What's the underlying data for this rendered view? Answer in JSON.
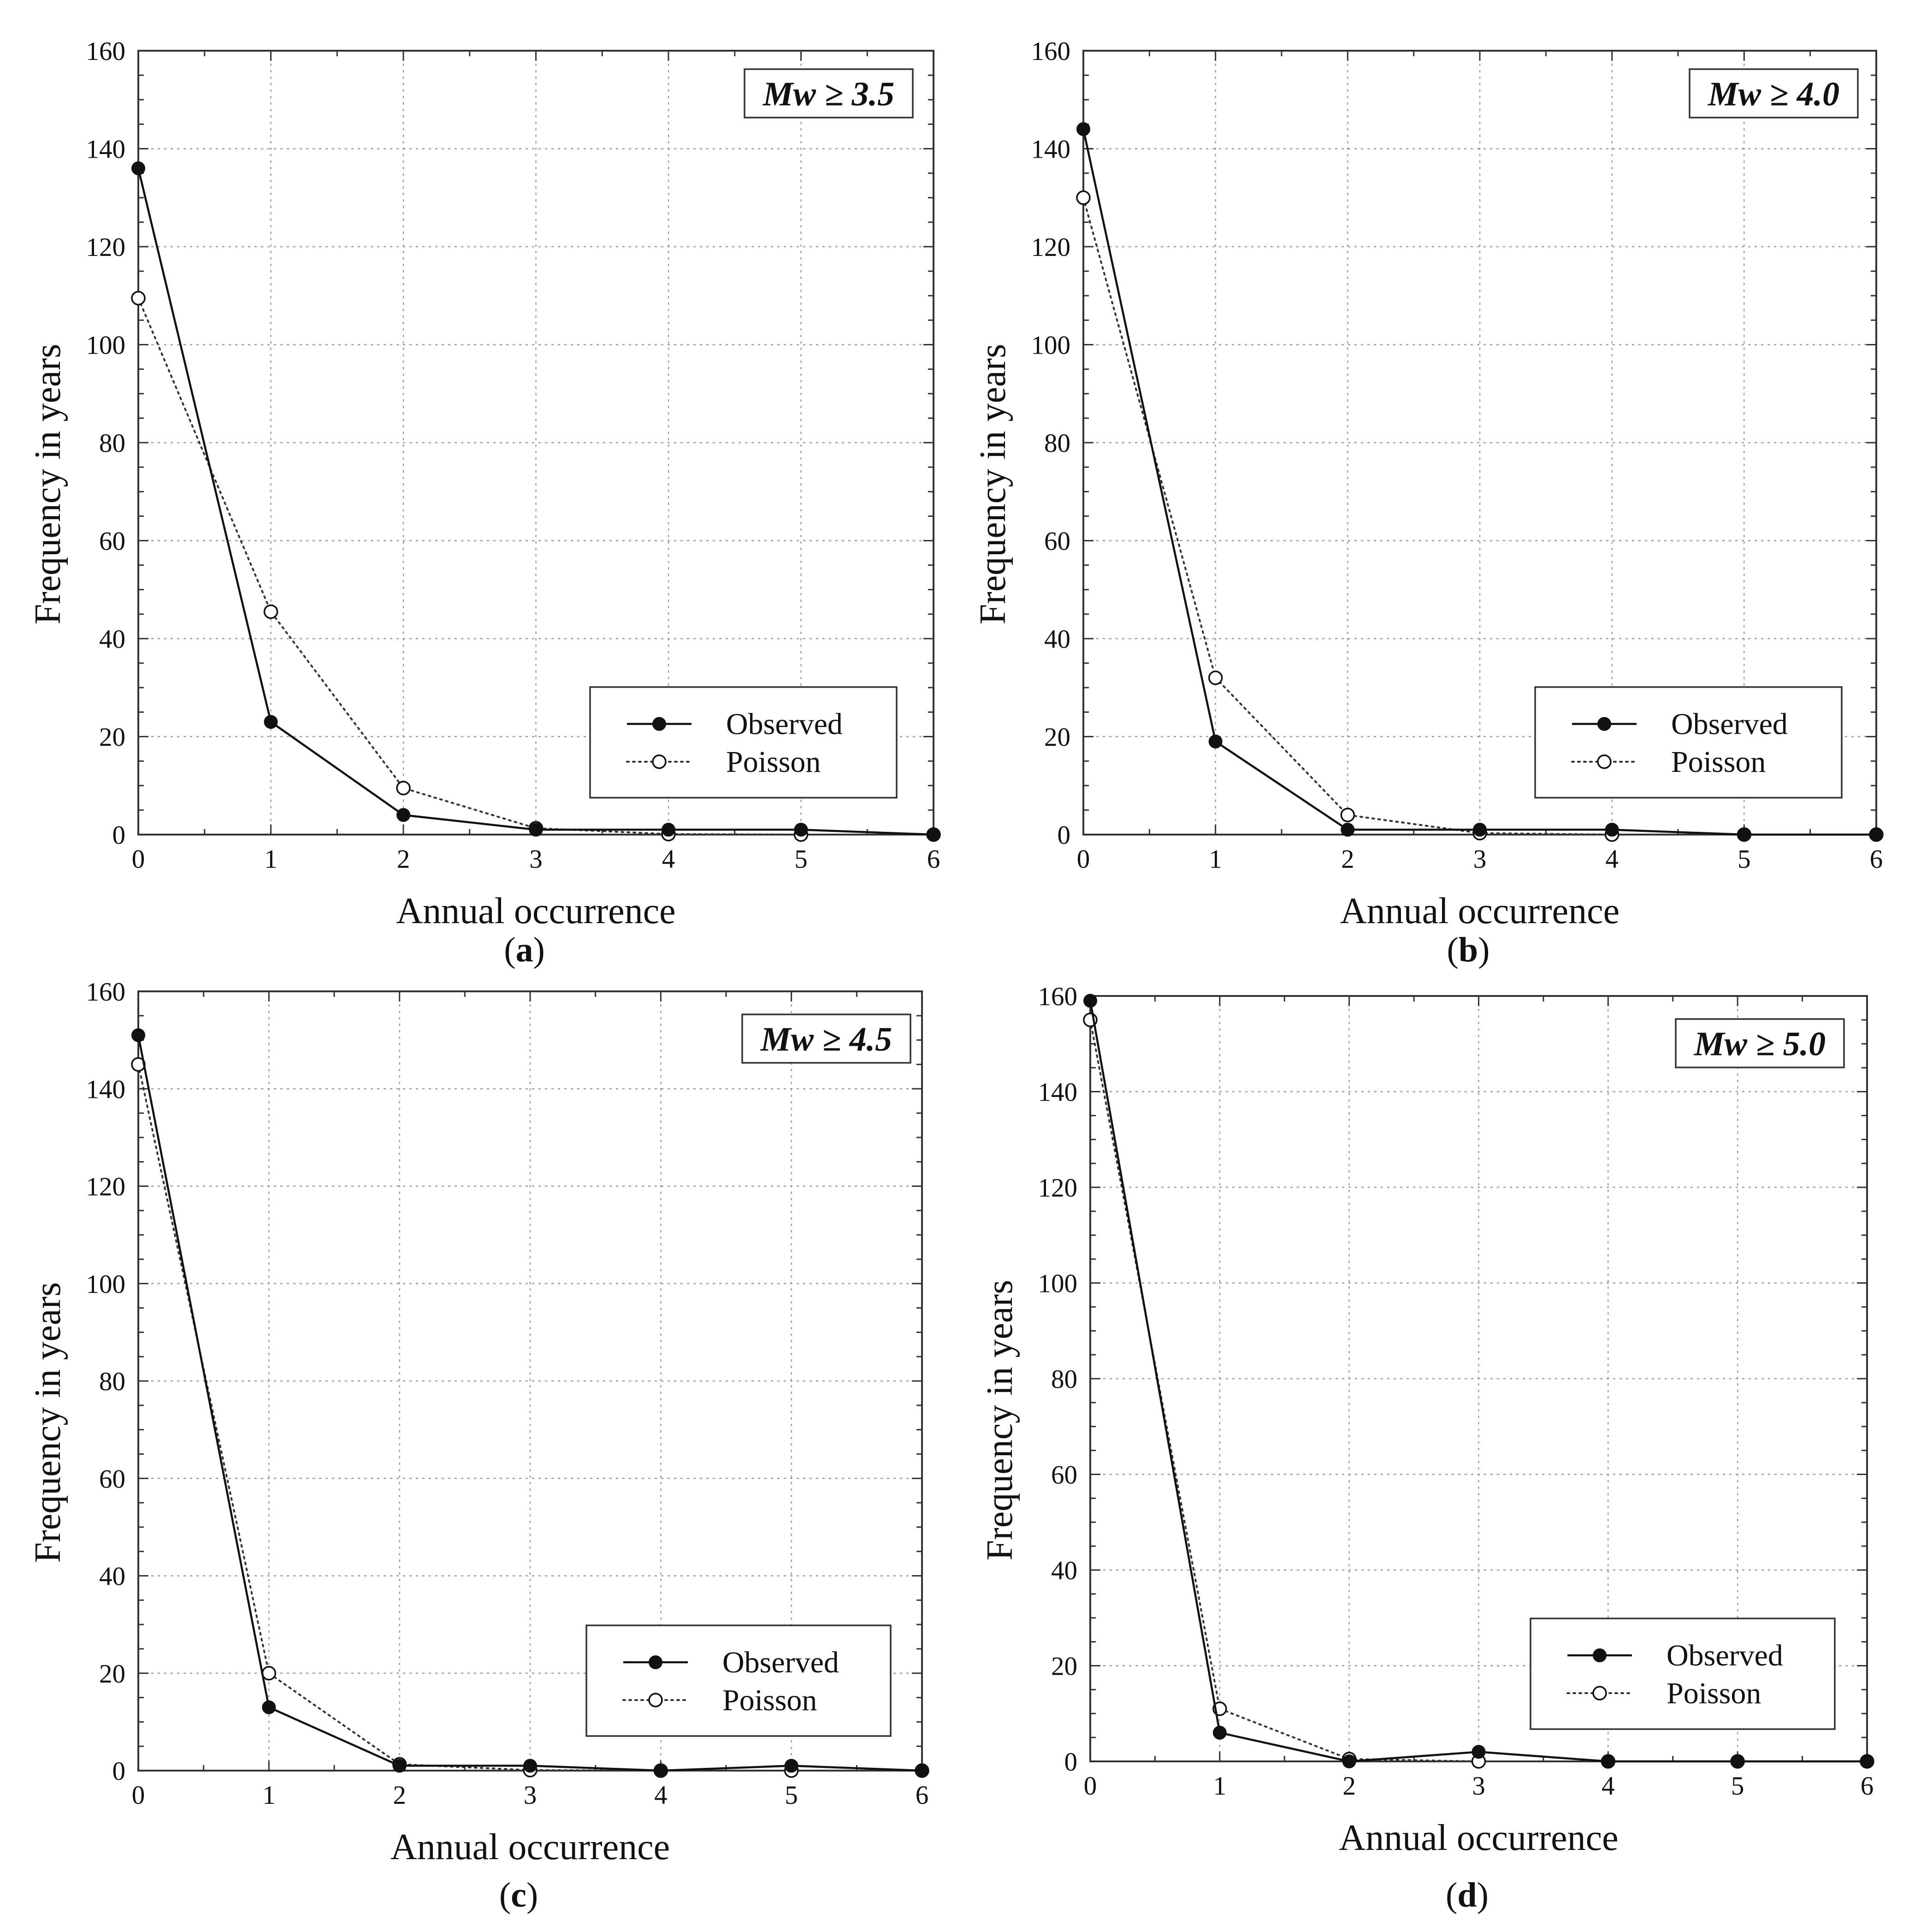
{
  "figure": {
    "colors": {
      "observed": "#111111",
      "poisson": "#333333",
      "grid": "#9a9a9a",
      "background": "#ffffff"
    }
  },
  "chart_data": [
    {
      "type": "line",
      "panel_label": "a",
      "title": "Mw ≥ 3.5",
      "xlabel": "Annual occurrence",
      "ylabel": "Frequency in years",
      "xlim": [
        0,
        6
      ],
      "ylim": [
        0,
        160
      ],
      "x_ticks": [
        "0",
        "1",
        "2",
        "3",
        "4",
        "5",
        "6"
      ],
      "y_ticks": [
        "0",
        "20",
        "40",
        "60",
        "80",
        "100",
        "120",
        "140",
        "160"
      ],
      "grid": true,
      "legend_position": "lower-right",
      "x": [
        0,
        1,
        2,
        3,
        4,
        5,
        6
      ],
      "series": [
        {
          "name": "Observed",
          "style": "solid-filled",
          "values": [
            136,
            23,
            4,
            1,
            1,
            1,
            0
          ]
        },
        {
          "name": "Poisson",
          "style": "dotted-open",
          "values": [
            109.5,
            45.5,
            9.5,
            1.3,
            0.1,
            0,
            0
          ]
        }
      ]
    },
    {
      "type": "line",
      "panel_label": "b",
      "title": "Mw ≥ 4.0",
      "xlabel": "Annual occurrence",
      "ylabel": "Frequency in years",
      "xlim": [
        0,
        6
      ],
      "ylim": [
        0,
        160
      ],
      "x_ticks": [
        "0",
        "1",
        "2",
        "3",
        "4",
        "5",
        "6"
      ],
      "y_ticks": [
        "0",
        "20",
        "40",
        "60",
        "80",
        "100",
        "120",
        "140",
        "160"
      ],
      "grid": true,
      "legend_position": "lower-right",
      "x": [
        0,
        1,
        2,
        3,
        4,
        5,
        6
      ],
      "series": [
        {
          "name": "Observed",
          "style": "solid-filled",
          "values": [
            144,
            19,
            1,
            1,
            1,
            0,
            0
          ]
        },
        {
          "name": "Poisson",
          "style": "dotted-open",
          "values": [
            130,
            32,
            4,
            0.3,
            0,
            0,
            0
          ]
        }
      ]
    },
    {
      "type": "line",
      "panel_label": "c",
      "title": "Mw ≥ 4.5",
      "xlabel": "Annual occurrence",
      "ylabel": "Frequency in years",
      "xlim": [
        0,
        6
      ],
      "ylim": [
        0,
        160
      ],
      "x_ticks": [
        "0",
        "1",
        "2",
        "3",
        "4",
        "5",
        "6"
      ],
      "y_ticks": [
        "0",
        "20",
        "40",
        "60",
        "80",
        "100",
        "120",
        "140",
        "160"
      ],
      "grid": true,
      "legend_position": "lower-right",
      "x": [
        0,
        1,
        2,
        3,
        4,
        5,
        6
      ],
      "series": [
        {
          "name": "Observed",
          "style": "solid-filled",
          "values": [
            151,
            13,
            1,
            1,
            0,
            1,
            0
          ]
        },
        {
          "name": "Poisson",
          "style": "dotted-open",
          "values": [
            145,
            20,
            1.3,
            0.1,
            0,
            0,
            0
          ]
        }
      ]
    },
    {
      "type": "line",
      "panel_label": "d",
      "title": "Mw ≥ 5.0",
      "xlabel": "Annual occurrence",
      "ylabel": "Frequency in years",
      "xlim": [
        0,
        6
      ],
      "ylim": [
        0,
        160
      ],
      "x_ticks": [
        "0",
        "1",
        "2",
        "3",
        "4",
        "5",
        "6"
      ],
      "y_ticks": [
        "0",
        "20",
        "40",
        "60",
        "80",
        "100",
        "120",
        "140",
        "160"
      ],
      "grid": true,
      "legend_position": "lower-right",
      "x": [
        0,
        1,
        2,
        3,
        4,
        5,
        6
      ],
      "series": [
        {
          "name": "Observed",
          "style": "solid-filled",
          "values": [
            159,
            6,
            0,
            2,
            0,
            0,
            0
          ]
        },
        {
          "name": "Poisson",
          "style": "dotted-open",
          "values": [
            155,
            11,
            0.5,
            0,
            0,
            0,
            0
          ]
        }
      ]
    }
  ]
}
